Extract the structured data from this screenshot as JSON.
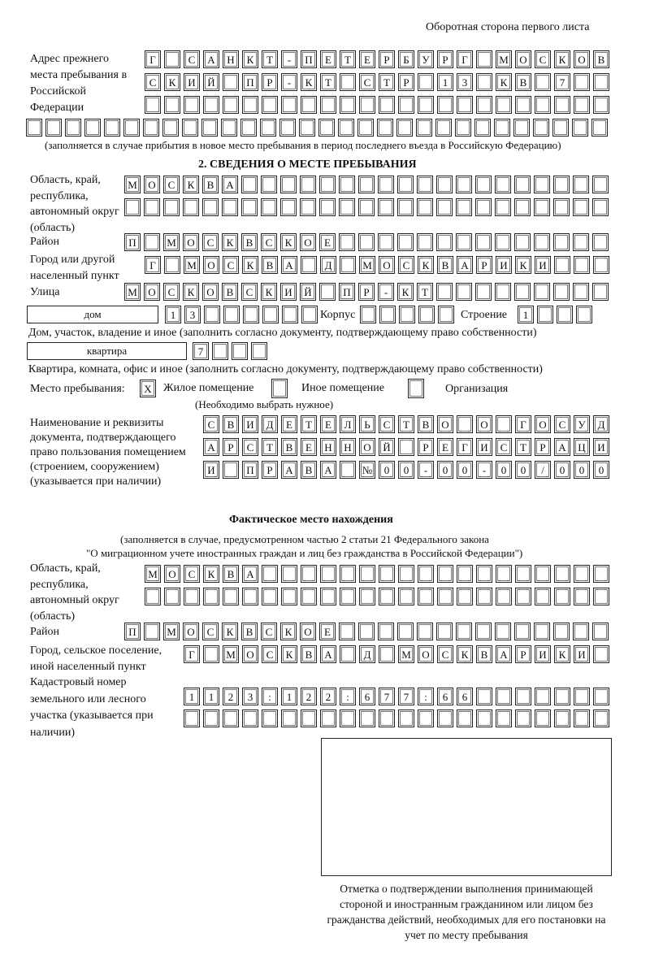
{
  "header": {
    "page_side": "Оборотная сторона первого листа"
  },
  "previous_address": {
    "label": "Адрес прежнего места пребывания в Российской Федерации",
    "rows": [
      [
        "Г",
        "",
        "С",
        "А",
        "Н",
        "К",
        "Т",
        "-",
        "П",
        "Е",
        "Т",
        "Е",
        "Р",
        "Б",
        "У",
        "Р",
        "Г",
        "",
        "М",
        "О",
        "С",
        "К",
        "О",
        "В"
      ],
      [
        "С",
        "К",
        "И",
        "Й",
        "",
        "П",
        "Р",
        "-",
        "К",
        "Т",
        "",
        "С",
        "Т",
        "Р",
        "",
        "1",
        "3",
        "",
        "К",
        "В",
        "",
        "7",
        "",
        ""
      ],
      [
        "",
        "",
        "",
        "",
        "",
        "",
        "",
        "",
        "",
        "",
        "",
        "",
        "",
        "",
        "",
        "",
        "",
        "",
        "",
        "",
        "",
        "",
        "",
        ""
      ],
      [
        "",
        "",
        "",
        "",
        "",
        "",
        "",
        "",
        "",
        "",
        "",
        "",
        "",
        "",
        "",
        "",
        "",
        "",
        "",
        "",
        "",
        "",
        "",
        "",
        "",
        "",
        "",
        "",
        "",
        ""
      ]
    ],
    "note": "(заполняется в случае прибытия в новое место пребывания в период последнего въезда в Российскую Федерацию)"
  },
  "section2": {
    "title": "2. СВЕДЕНИЯ О МЕСТЕ ПРЕБЫВАНИЯ",
    "region_label": "Область, край, республика, автономный округ (область)",
    "region_rows": [
      [
        "М",
        "О",
        "С",
        "К",
        "В",
        "А",
        "",
        "",
        "",
        "",
        "",
        "",
        "",
        "",
        "",
        "",
        "",
        "",
        "",
        "",
        "",
        "",
        "",
        "",
        ""
      ],
      [
        "",
        "",
        "",
        "",
        "",
        "",
        "",
        "",
        "",
        "",
        "",
        "",
        "",
        "",
        "",
        "",
        "",
        "",
        "",
        "",
        "",
        "",
        "",
        "",
        ""
      ]
    ],
    "district_label": "Район",
    "district_row": [
      "П",
      "",
      "М",
      "О",
      "С",
      "К",
      "В",
      "С",
      "К",
      "О",
      "Е",
      "",
      "",
      "",
      "",
      "",
      "",
      "",
      "",
      "",
      "",
      "",
      "",
      "",
      ""
    ],
    "city_label": "Город или другой населенный пункт",
    "city_row": [
      "Г",
      "",
      "М",
      "О",
      "С",
      "К",
      "В",
      "А",
      "",
      "Д",
      "",
      "М",
      "О",
      "С",
      "К",
      "В",
      "А",
      "Р",
      "И",
      "К",
      "И",
      "",
      "",
      ""
    ],
    "street_label": "Улица",
    "street_row": [
      "М",
      "О",
      "С",
      "К",
      "О",
      "В",
      "С",
      "К",
      "И",
      "Й",
      "",
      "П",
      "Р",
      "-",
      "К",
      "Т",
      "",
      "",
      "",
      "",
      "",
      "",
      "",
      "",
      ""
    ],
    "house_type": "дом",
    "house_row": [
      "1",
      "3",
      "",
      "",
      "",
      "",
      "",
      ""
    ],
    "korpus_label": "Корпус",
    "korpus_row": [
      "",
      "",
      "",
      "",
      ""
    ],
    "building_label": "Строение",
    "building_row": [
      "1",
      "",
      "",
      ""
    ],
    "house_note": "Дом, участок, владение и иное (заполнить согласно документу, подтверждающему право собственности)",
    "flat_type": "квартира",
    "flat_row": [
      "7",
      "",
      "",
      ""
    ],
    "flat_note": "Квартира, комната, офис и иное (заполнить согласно документу, подтверждающему право собственности)",
    "place_label": "Место пребывания:",
    "place_options": [
      {
        "label": "Жилое помещение",
        "mark": "X"
      },
      {
        "label": "Иное помещение",
        "mark": ""
      },
      {
        "label": "Организация",
        "mark": ""
      }
    ],
    "place_note": "(Необходимо выбрать нужное)",
    "doc_label": "Наименование и реквизиты документа, подтверждающего право пользования помещением (строением, сооружением) (указывается при наличии)",
    "doc_rows": [
      [
        "С",
        "В",
        "И",
        "Д",
        "Е",
        "Т",
        "Е",
        "Л",
        "Ь",
        "С",
        "Т",
        "В",
        "О",
        "",
        "О",
        "",
        "Г",
        "О",
        "С",
        "У",
        "Д"
      ],
      [
        "А",
        "Р",
        "С",
        "Т",
        "В",
        "Е",
        "Н",
        "Н",
        "О",
        "Й",
        "",
        "Р",
        "Е",
        "Г",
        "И",
        "С",
        "Т",
        "Р",
        "А",
        "Ц",
        "И"
      ],
      [
        "И",
        "",
        "П",
        "Р",
        "А",
        "В",
        "А",
        "",
        "№",
        "0",
        "0",
        "-",
        "0",
        "0",
        "-",
        "0",
        "0",
        "/",
        "0",
        "0",
        "0"
      ]
    ]
  },
  "actual": {
    "title": "Фактическое место нахождения",
    "note1": "(заполняется в случае, предусмотренном частью 2 статьи 21 Федерального закона",
    "note2": "\"О миграционном учете иностранных граждан и лиц без гражданства в Российской Федерации\")",
    "region_label": "Область, край, республика, автономный округ (область)",
    "region_rows": [
      [
        "М",
        "О",
        "С",
        "К",
        "В",
        "А",
        "",
        "",
        "",
        "",
        "",
        "",
        "",
        "",
        "",
        "",
        "",
        "",
        "",
        "",
        "",
        "",
        "",
        ""
      ],
      [
        "",
        "",
        "",
        "",
        "",
        "",
        "",
        "",
        "",
        "",
        "",
        "",
        "",
        "",
        "",
        "",
        "",
        "",
        "",
        "",
        "",
        "",
        "",
        ""
      ]
    ],
    "district_label": "Район",
    "district_row": [
      "П",
      "",
      "М",
      "О",
      "С",
      "К",
      "В",
      "С",
      "К",
      "О",
      "Е",
      "",
      "",
      "",
      "",
      "",
      "",
      "",
      "",
      "",
      "",
      "",
      "",
      "",
      ""
    ],
    "city_label": "Город, сельское поселение, иной населенный пункт",
    "city_row": [
      "Г",
      "",
      "М",
      "О",
      "С",
      "К",
      "В",
      "А",
      "",
      "Д",
      "",
      "М",
      "О",
      "С",
      "К",
      "В",
      "А",
      "Р",
      "И",
      "К",
      "И",
      ""
    ],
    "cadastral_label": "Кадастровый номер земельного или лесного участка (указывается при наличии)",
    "cadastral_rows": [
      [
        "1",
        "1",
        "2",
        "3",
        ":",
        "1",
        "2",
        "2",
        ":",
        "6",
        "7",
        "7",
        ":",
        "6",
        "6",
        "",
        "",
        "",
        "",
        "",
        "",
        ""
      ],
      [
        "",
        "",
        "",
        "",
        "",
        "",
        "",
        "",
        "",
        "",
        "",
        "",
        "",
        "",
        "",
        "",
        "",
        "",
        "",
        "",
        "",
        ""
      ]
    ]
  },
  "confirmation": {
    "caption": "Отметка о подтверждении выполнения принимающей стороной и иностранным гражданином или лицом без гражданства действий, необходимых для его постановки на учет по месту пребывания"
  }
}
